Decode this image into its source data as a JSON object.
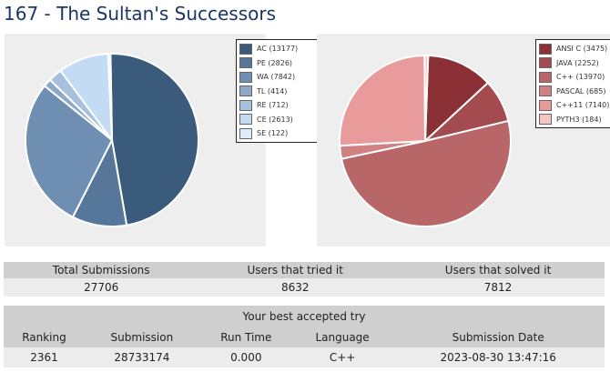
{
  "page": {
    "title": "167 - The Sultan's Successors"
  },
  "charts": {
    "verdicts": {
      "type": "pie",
      "legend": [
        {
          "label": "AC (13177)",
          "value": 13177,
          "color": "#3a5b7c"
        },
        {
          "label": "PE (2826)",
          "value": 2826,
          "color": "#56769a"
        },
        {
          "label": "WA (7842)",
          "value": 7842,
          "color": "#6f8fb2"
        },
        {
          "label": "TL (414)",
          "value": 414,
          "color": "#8ea9c8"
        },
        {
          "label": "RE (712)",
          "value": 712,
          "color": "#a7c0dc"
        },
        {
          "label": "CE (2613)",
          "value": 2613,
          "color": "#c4dbf4"
        },
        {
          "label": "SE (122)",
          "value": 122,
          "color": "#dcecfb"
        }
      ]
    },
    "languages": {
      "type": "pie",
      "legend": [
        {
          "label": "ANSI C (3475)",
          "value": 3475,
          "color": "#8b3035"
        },
        {
          "label": "JAVA (2252)",
          "value": 2252,
          "color": "#a44b4f"
        },
        {
          "label": "C++ (13970)",
          "value": 13970,
          "color": "#b96668"
        },
        {
          "label": "PASCAL (685)",
          "value": 685,
          "color": "#cf8184"
        },
        {
          "label": "C++11 (7140)",
          "value": 7140,
          "color": "#e99b9c"
        },
        {
          "label": "PYTH3 (184)",
          "value": 184,
          "color": "#f7c4c4"
        }
      ]
    }
  },
  "stats": {
    "headers": [
      "Total Submissions",
      "Users that tried it",
      "Users that solved it"
    ],
    "values": [
      "27706",
      "8632",
      "7812"
    ]
  },
  "best": {
    "caption": "Your best accepted try",
    "headers": [
      "Ranking",
      "Submission",
      "Run Time",
      "Language",
      "Submission Date"
    ],
    "values": [
      "2361",
      "28733174",
      "0.000",
      "C++",
      "2023-08-30 13:47:16"
    ]
  }
}
